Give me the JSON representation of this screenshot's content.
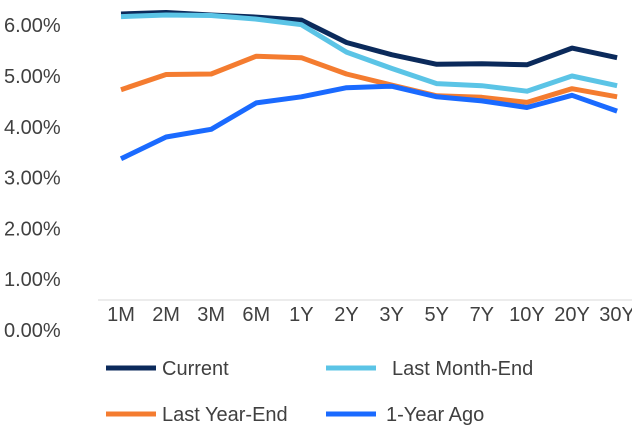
{
  "chart_data": {
    "type": "line",
    "categories": [
      "1M",
      "2M",
      "3M",
      "6M",
      "1Y",
      "2Y",
      "3Y",
      "5Y",
      "7Y",
      "10Y",
      "20Y",
      "30Y"
    ],
    "y_tick_labels": [
      "0.00%",
      "1.00%",
      "2.00%",
      "3.00%",
      "4.00%",
      "5.00%",
      "6.00%"
    ],
    "ylim": [
      0,
      6.5
    ],
    "y_unit": "%",
    "grid": false,
    "legend_position": "bottom",
    "series": [
      {
        "name": "Current",
        "color": "#0b2a5b",
        "values": [
          6.22,
          6.25,
          6.2,
          6.16,
          6.1,
          5.66,
          5.42,
          5.23,
          5.24,
          5.22,
          5.55,
          5.36
        ]
      },
      {
        "name": "Last Month-End",
        "color": "#5bc4e6",
        "values": [
          6.17,
          6.2,
          6.19,
          6.12,
          6.01,
          5.47,
          5.15,
          4.85,
          4.81,
          4.7,
          5.0,
          4.81
        ]
      },
      {
        "name": "Last Year-End",
        "color": "#f47c30",
        "values": [
          4.73,
          5.03,
          5.04,
          5.39,
          5.36,
          5.04,
          4.82,
          4.61,
          4.58,
          4.48,
          4.75,
          4.59
        ]
      },
      {
        "name": "1-Year Ago",
        "color": "#1a6aff",
        "values": [
          3.37,
          3.8,
          3.95,
          4.47,
          4.59,
          4.77,
          4.8,
          4.59,
          4.51,
          4.38,
          4.62,
          4.31
        ]
      }
    ]
  }
}
